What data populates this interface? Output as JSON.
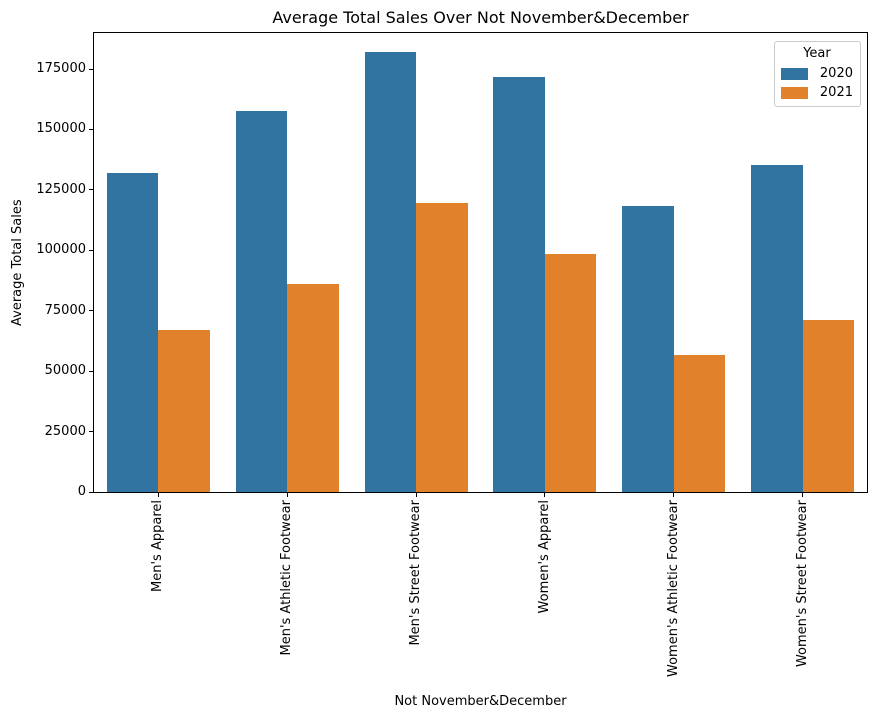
{
  "chart_data": {
    "type": "bar",
    "title": "Average Total Sales Over Not November&December",
    "xlabel": "Not November&December",
    "ylabel": "Average Total Sales",
    "categories": [
      "Men's Apparel",
      "Men's Athletic Footwear",
      "Men's Street Footwear",
      "Women's Apparel",
      "Women's Athletic Footwear",
      "Women's Street Footwear"
    ],
    "series": [
      {
        "name": "2020",
        "color": "#3274A1",
        "values": [
          132000,
          157500,
          182000,
          171500,
          118500,
          135500
        ]
      },
      {
        "name": "2021",
        "color": "#E1812C",
        "values": [
          67000,
          86000,
          119500,
          98500,
          56500,
          71000
        ]
      }
    ],
    "yticks": [
      0,
      25000,
      50000,
      75000,
      100000,
      125000,
      150000,
      175000
    ],
    "ylim": [
      0,
      189900
    ],
    "grid": false,
    "legend": {
      "title": "Year",
      "position": "upper right"
    },
    "bar_group_width_fraction": 0.8
  }
}
